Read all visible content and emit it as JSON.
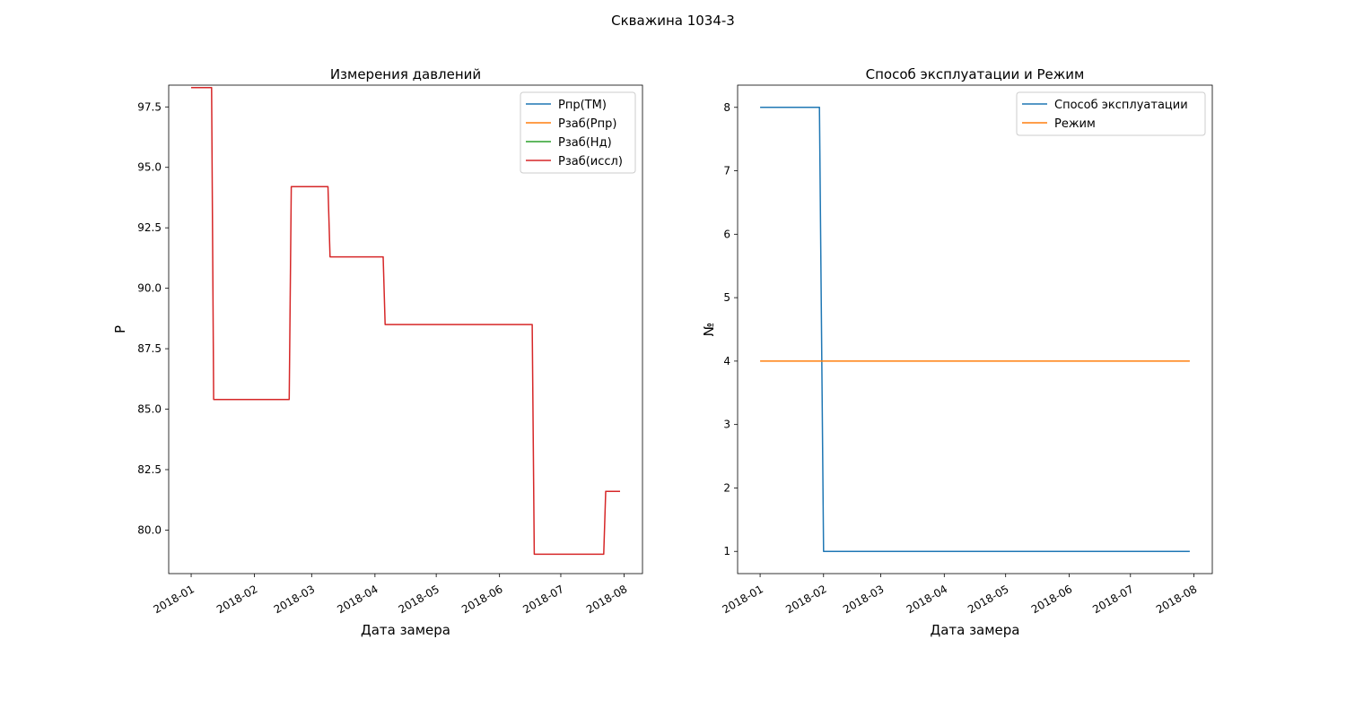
{
  "figure": {
    "suptitle": "Скважина 1034-3"
  },
  "chart_data": [
    {
      "type": "line",
      "title": "Измерения давлений",
      "xlabel": "Дата замера",
      "ylabel": "P",
      "x_type": "date",
      "xlim": [
        "2017-12-21",
        "2018-08-10"
      ],
      "ylim": [
        78.2,
        98.4
      ],
      "xticks": [
        "2018-01-01",
        "2018-02-01",
        "2018-03-01",
        "2018-04-01",
        "2018-05-01",
        "2018-06-01",
        "2018-07-01",
        "2018-08-01"
      ],
      "xtick_labels": [
        "2018-01",
        "2018-02",
        "2018-03",
        "2018-04",
        "2018-05",
        "2018-06",
        "2018-07",
        "2018-08"
      ],
      "yticks": [
        80.0,
        82.5,
        85.0,
        87.5,
        90.0,
        92.5,
        95.0,
        97.5
      ],
      "ytick_labels": [
        "80.0",
        "82.5",
        "85.0",
        "87.5",
        "90.0",
        "92.5",
        "95.0",
        "97.5"
      ],
      "legend": "upper-right",
      "grid": false,
      "series": [
        {
          "name": "Pпр(ТМ)",
          "color": "#1f77b4",
          "points": []
        },
        {
          "name": "Pзаб(Pпр)",
          "color": "#ff7f0e",
          "points": []
        },
        {
          "name": "Pзаб(Нд)",
          "color": "#2ca02c",
          "points": []
        },
        {
          "name": "Pзаб(иссл)",
          "color": "#d62728",
          "points": [
            [
              "2018-01-01",
              98.3
            ],
            [
              "2018-01-11",
              98.3
            ],
            [
              "2018-01-12",
              85.4
            ],
            [
              "2018-02-18",
              85.4
            ],
            [
              "2018-02-19",
              94.2
            ],
            [
              "2018-03-09",
              94.2
            ],
            [
              "2018-03-10",
              91.3
            ],
            [
              "2018-04-05",
              91.3
            ],
            [
              "2018-04-06",
              88.5
            ],
            [
              "2018-06-17",
              88.5
            ],
            [
              "2018-06-18",
              79.0
            ],
            [
              "2018-07-22",
              79.0
            ],
            [
              "2018-07-23",
              81.6
            ],
            [
              "2018-07-30",
              81.6
            ]
          ]
        }
      ]
    },
    {
      "type": "line",
      "title": "Способ эксплуатации и Режим",
      "xlabel": "Дата замера",
      "ylabel": "№",
      "x_type": "date",
      "xlim": [
        "2017-12-21",
        "2018-08-10"
      ],
      "ylim": [
        0.65,
        8.35
      ],
      "xticks": [
        "2018-01-01",
        "2018-02-01",
        "2018-03-01",
        "2018-04-01",
        "2018-05-01",
        "2018-06-01",
        "2018-07-01",
        "2018-08-01"
      ],
      "xtick_labels": [
        "2018-01",
        "2018-02",
        "2018-03",
        "2018-04",
        "2018-05",
        "2018-06",
        "2018-07",
        "2018-08"
      ],
      "yticks": [
        1,
        2,
        3,
        4,
        5,
        6,
        7,
        8
      ],
      "ytick_labels": [
        "1",
        "2",
        "3",
        "4",
        "5",
        "6",
        "7",
        "8"
      ],
      "legend": "upper-right",
      "grid": false,
      "series": [
        {
          "name": "Способ эксплуатации",
          "color": "#1f77b4",
          "points": [
            [
              "2018-01-01",
              8
            ],
            [
              "2018-01-30",
              8
            ],
            [
              "2018-02-01",
              1
            ],
            [
              "2018-07-30",
              1
            ]
          ]
        },
        {
          "name": "Режим",
          "color": "#ff7f0e",
          "points": [
            [
              "2018-01-01",
              4
            ],
            [
              "2018-07-30",
              4
            ]
          ]
        }
      ]
    }
  ]
}
